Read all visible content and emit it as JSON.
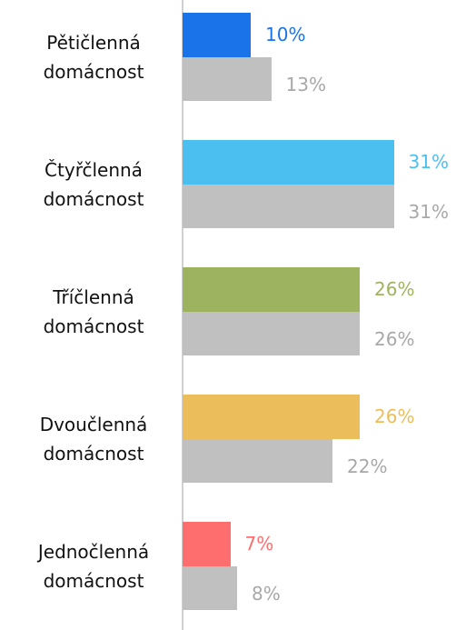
{
  "chart_data": {
    "type": "bar",
    "orientation": "horizontal",
    "categories": [
      "Pětičlenná\ndomácnost",
      "Čtyřčlenná\ndomácnost",
      "Tříčlenná\ndomácnost",
      "Dvoučlenná\ndomácnost",
      "Jednočlenná\ndomácnost"
    ],
    "series": [
      {
        "colors": [
          "#1a73e8",
          "#4bc0f0",
          "#9eb35f",
          "#ecbd5b",
          "#fe6e6e"
        ],
        "values": [
          10,
          31,
          26,
          26,
          7
        ],
        "value_labels": [
          "10%",
          "31%",
          "26%",
          "26%",
          "7%"
        ]
      },
      {
        "color": "#c0c0c0",
        "label_color": "#a8a8a8",
        "values": [
          13,
          31,
          26,
          22,
          8
        ],
        "value_labels": [
          "13%",
          "31%",
          "26%",
          "22%",
          "8%"
        ]
      }
    ],
    "xlim": [
      0,
      40
    ]
  }
}
